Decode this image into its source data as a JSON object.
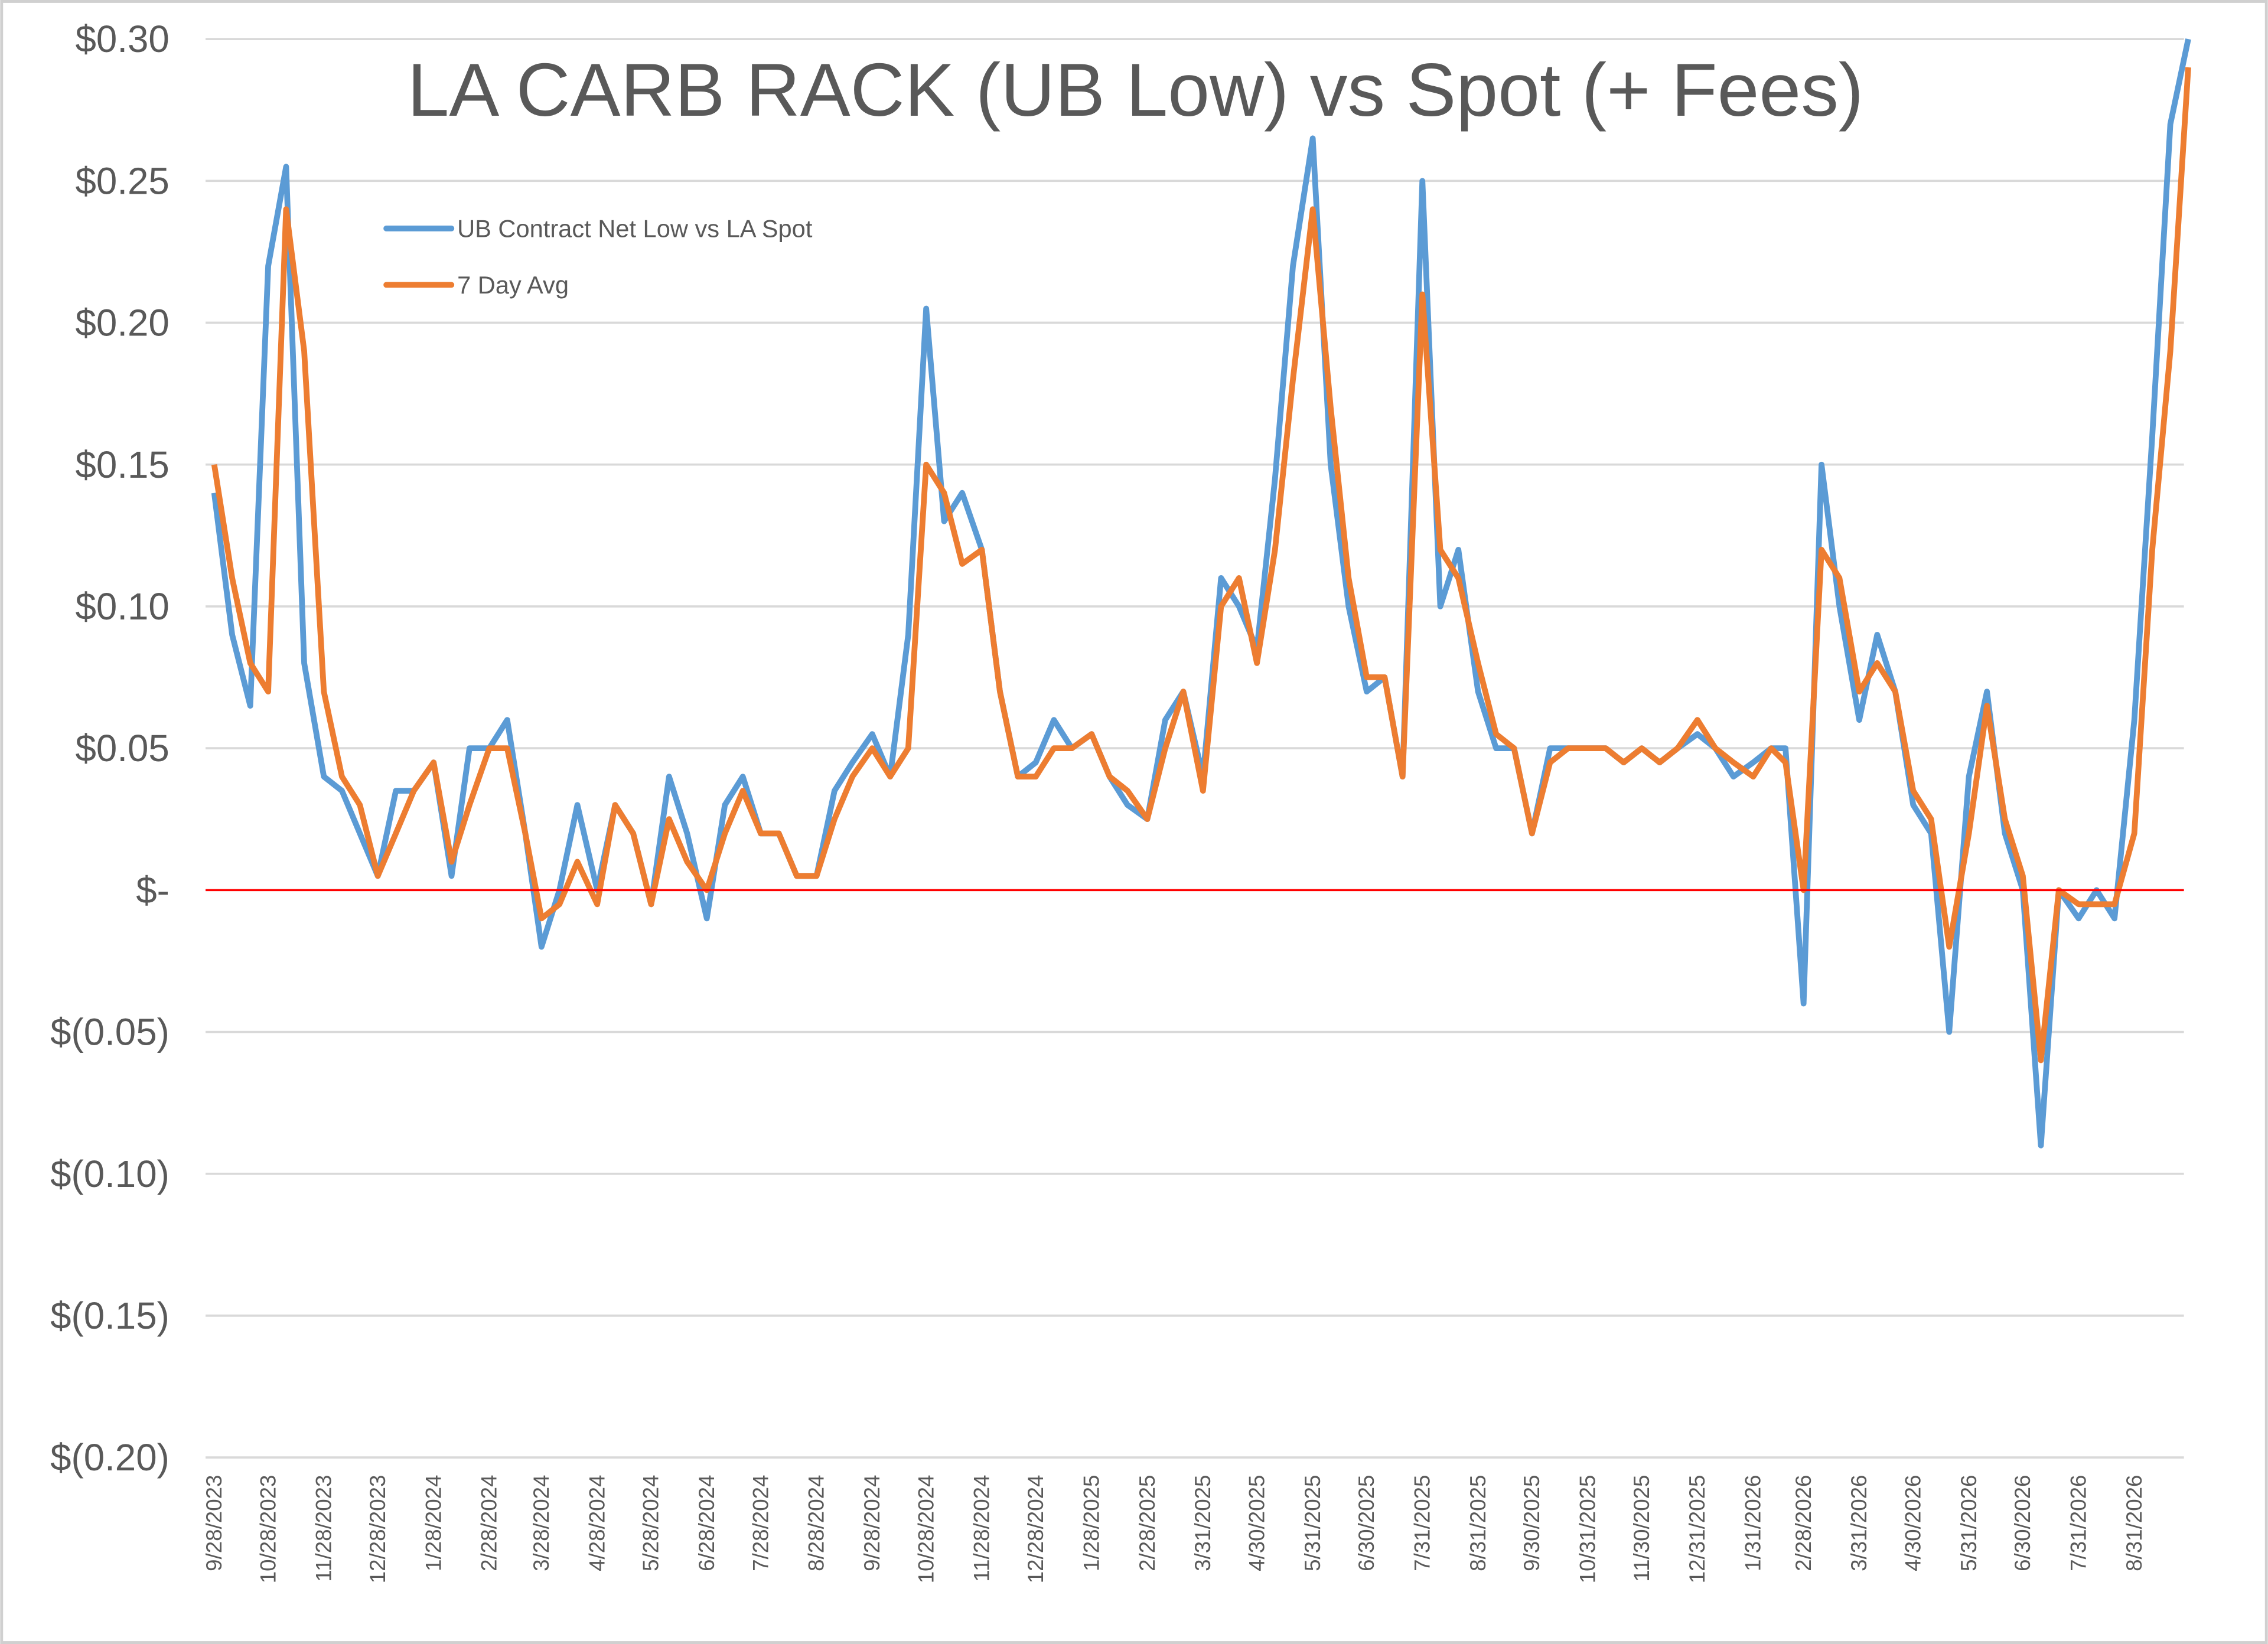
{
  "chart_data": {
    "type": "line",
    "title": "LA CARB RACK (UB Low) vs Spot (+ Fees)",
    "x": [
      "9/28/2023",
      "10/8/2023",
      "10/18/2023",
      "10/28/2023",
      "11/7/2023",
      "11/17/2023",
      "11/28/2023",
      "12/8/2023",
      "12/18/2023",
      "12/28/2023",
      "1/7/2024",
      "1/17/2024",
      "1/28/2024",
      "2/7/2024",
      "2/17/2024",
      "2/28/2024",
      "3/9/2024",
      "3/19/2024",
      "3/28/2024",
      "4/7/2024",
      "4/17/2024",
      "4/28/2024",
      "5/8/2024",
      "5/18/2024",
      "5/28/2024",
      "6/7/2024",
      "6/17/2024",
      "6/28/2024",
      "7/8/2024",
      "7/18/2024",
      "7/28/2024",
      "8/7/2024",
      "8/17/2024",
      "8/28/2024",
      "9/7/2024",
      "9/17/2024",
      "9/28/2024",
      "10/8/2024",
      "10/18/2024",
      "10/28/2024",
      "11/7/2024",
      "11/17/2024",
      "11/28/2024",
      "12/8/2024",
      "12/18/2024",
      "12/28/2024",
      "1/7/2025",
      "1/17/2025",
      "1/28/2025",
      "2/7/2025",
      "2/17/2025",
      "2/28/2025",
      "3/10/2025",
      "3/20/2025",
      "3/31/2025",
      "4/10/2025",
      "4/20/2025",
      "4/30/2025",
      "5/10/2025",
      "5/20/2025",
      "5/31/2025",
      "6/10/2025",
      "6/20/2025",
      "6/30/2025",
      "7/10/2025",
      "7/20/2025",
      "7/31/2025",
      "8/10/2025",
      "8/20/2025",
      "8/31/2025",
      "9/10/2025",
      "9/20/2025",
      "9/30/2025",
      "10/10/2025",
      "10/20/2025",
      "10/31/2025",
      "11/10/2025",
      "11/20/2025",
      "11/30/2025",
      "12/10/2025",
      "12/20/2025",
      "12/31/2025",
      "1/10/2026",
      "1/20/2026",
      "1/31/2026",
      "2/10/2026",
      "2/18/2026",
      "2/28/2026",
      "3/10/2026",
      "3/20/2026",
      "3/31/2026",
      "4/10/2026",
      "4/20/2026",
      "4/30/2026",
      "5/10/2026",
      "5/20/2026",
      "5/31/2026",
      "6/10/2026",
      "6/20/2026",
      "6/30/2026",
      "7/10/2026",
      "7/20/2026",
      "7/31/2026",
      "8/10/2026",
      "8/20/2026",
      "8/31/2026",
      "9/10/2026",
      "9/20/2026",
      "9/30/2026"
    ],
    "series": [
      {
        "name": "UB Contract Net Low vs LA Spot",
        "color": "#5b9bd5",
        "values": [
          0.14,
          0.09,
          0.065,
          0.22,
          0.255,
          0.08,
          0.04,
          0.035,
          0.02,
          0.005,
          0.035,
          0.035,
          0.045,
          0.005,
          0.05,
          0.05,
          0.06,
          0.02,
          -0.02,
          0.0,
          0.03,
          0.0,
          0.03,
          0.02,
          -0.005,
          0.04,
          0.02,
          -0.01,
          0.03,
          0.04,
          0.02,
          0.02,
          0.005,
          0.005,
          0.035,
          0.045,
          0.055,
          0.04,
          0.09,
          0.205,
          0.13,
          0.14,
          0.12,
          0.07,
          0.04,
          0.045,
          0.06,
          0.05,
          0.055,
          0.04,
          0.03,
          0.025,
          0.06,
          0.07,
          0.04,
          0.11,
          0.1,
          0.085,
          0.145,
          0.22,
          0.265,
          0.15,
          0.1,
          0.07,
          0.075,
          0.04,
          0.25,
          0.1,
          0.12,
          0.07,
          0.05,
          0.05,
          0.02,
          0.05,
          0.05,
          0.05,
          0.05,
          0.045,
          0.05,
          0.045,
          0.05,
          0.055,
          0.05,
          0.04,
          0.045,
          0.05,
          0.05,
          -0.04,
          0.15,
          0.1,
          0.06,
          0.09,
          0.07,
          0.03,
          0.02,
          -0.05,
          0.04,
          0.07,
          0.02,
          0.0,
          -0.09,
          0.0,
          -0.01,
          0.0,
          -0.01,
          0.06,
          0.16,
          0.27,
          0.3
        ]
      },
      {
        "name": "7 Day Avg",
        "color": "#ed7d31",
        "values": [
          0.15,
          0.11,
          0.08,
          0.07,
          0.24,
          0.19,
          0.07,
          0.04,
          0.03,
          0.005,
          0.02,
          0.035,
          0.045,
          0.01,
          0.03,
          0.05,
          0.05,
          0.02,
          -0.01,
          -0.005,
          0.01,
          -0.005,
          0.03,
          0.02,
          -0.005,
          0.025,
          0.01,
          0.0,
          0.02,
          0.035,
          0.02,
          0.02,
          0.005,
          0.005,
          0.025,
          0.04,
          0.05,
          0.04,
          0.05,
          0.15,
          0.14,
          0.115,
          0.12,
          0.07,
          0.04,
          0.04,
          0.05,
          0.05,
          0.055,
          0.04,
          0.035,
          0.025,
          0.05,
          0.07,
          0.035,
          0.1,
          0.11,
          0.08,
          0.12,
          0.18,
          0.24,
          0.17,
          0.11,
          0.075,
          0.075,
          0.04,
          0.21,
          0.12,
          0.11,
          0.08,
          0.055,
          0.05,
          0.02,
          0.045,
          0.05,
          0.05,
          0.05,
          0.045,
          0.05,
          0.045,
          0.05,
          0.06,
          0.05,
          0.045,
          0.04,
          0.05,
          0.045,
          0.0,
          0.12,
          0.11,
          0.07,
          0.08,
          0.07,
          0.035,
          0.025,
          -0.02,
          0.02,
          0.065,
          0.025,
          0.005,
          -0.06,
          0.0,
          -0.005,
          -0.005,
          -0.005,
          0.02,
          0.12,
          0.19,
          0.29
        ]
      }
    ],
    "xlim": [
      "9/28/2023",
      "9/30/2026"
    ],
    "xticks": [
      "9/28/2023",
      "10/28/2023",
      "11/28/2023",
      "12/28/2023",
      "1/28/2024",
      "2/28/2024",
      "3/28/2024",
      "4/28/2024",
      "5/28/2024",
      "6/28/2024",
      "7/28/2024",
      "8/28/2024",
      "9/28/2024",
      "10/28/2024",
      "11/28/2024",
      "12/28/2024",
      "1/28/2025",
      "2/28/2025",
      "3/31/2025",
      "4/30/2025",
      "5/31/2025",
      "6/30/2025",
      "7/31/2025",
      "8/31/2025",
      "9/30/2025",
      "10/31/2025",
      "11/30/2025",
      "12/31/2025",
      "1/31/2026",
      "2/28/2026",
      "3/31/2026",
      "4/30/2026",
      "5/31/2026",
      "6/30/2026",
      "7/31/2026",
      "8/31/2026"
    ],
    "ylim": [
      -0.2,
      0.3
    ],
    "yticks": [
      {
        "value": 0.3,
        "label": "$0.30"
      },
      {
        "value": 0.25,
        "label": "$0.25"
      },
      {
        "value": 0.2,
        "label": "$0.20"
      },
      {
        "value": 0.15,
        "label": "$0.15"
      },
      {
        "value": 0.1,
        "label": "$0.10"
      },
      {
        "value": 0.05,
        "label": "$0.05"
      },
      {
        "value": 0,
        "label": "$-"
      },
      {
        "value": -0.05,
        "label": "$(0.05)"
      },
      {
        "value": -0.1,
        "label": "$(0.10)"
      },
      {
        "value": -0.15,
        "label": "$(0.15)"
      },
      {
        "value": -0.2,
        "label": "$(0.20)"
      }
    ],
    "grid": true,
    "grid_color": "#d9d9d9",
    "zero_line_color": "#ff0000",
    "legend": "upper left"
  }
}
